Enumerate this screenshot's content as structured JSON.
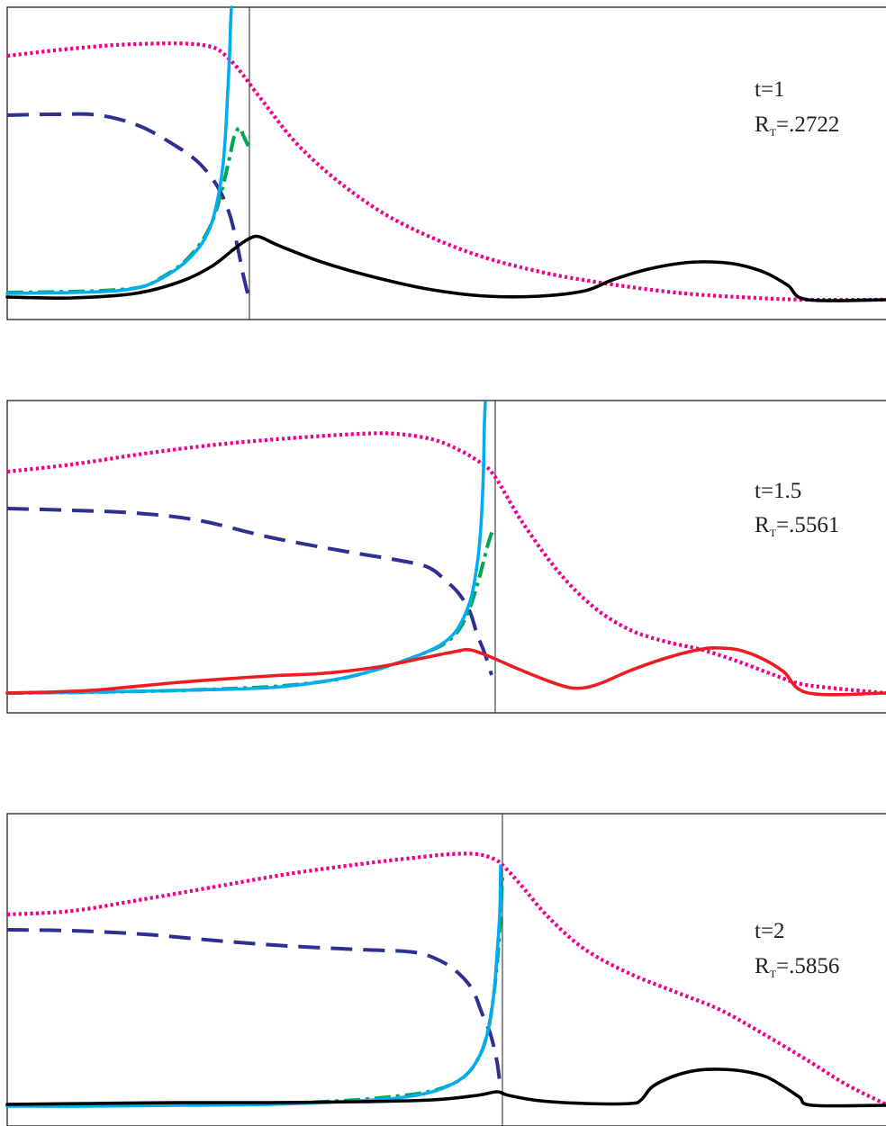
{
  "chart_data": [
    {
      "type": "line",
      "annotation": {
        "time_label": "t=1",
        "radius_main": "R",
        "radius_sub": "T",
        "radius_value": "=.2722"
      },
      "interface_x": 277,
      "series": [
        {
          "color": "#ec008c",
          "dash": "dotted",
          "points": [
            [
              8,
              62
            ],
            [
              80,
              54
            ],
            [
              150,
              49
            ],
            [
              225,
              50
            ],
            [
              255,
              66
            ],
            [
              290,
              110
            ],
            [
              330,
              160
            ],
            [
              380,
              205
            ],
            [
              440,
              245
            ],
            [
              520,
              280
            ],
            [
              600,
              302
            ],
            [
              680,
              316
            ],
            [
              760,
              326
            ],
            [
              840,
              331
            ],
            [
              900,
              333
            ],
            [
              984,
              333
            ]
          ]
        },
        {
          "color": "#2e3192",
          "dash": "dashed",
          "points": [
            [
              8,
              128
            ],
            [
              60,
              127
            ],
            [
              110,
              128
            ],
            [
              155,
              140
            ],
            [
              195,
              162
            ],
            [
              222,
              182
            ],
            [
              242,
              208
            ],
            [
              255,
              238
            ],
            [
              264,
              275
            ],
            [
              270,
              305
            ],
            [
              276,
              330
            ]
          ]
        },
        {
          "color": "#00a651",
          "dash": "dashdot",
          "points": [
            [
              8,
              325
            ],
            [
              80,
              324
            ],
            [
              130,
              322
            ],
            [
              160,
              318
            ],
            [
              180,
              308
            ],
            [
              200,
              295
            ],
            [
              215,
              280
            ],
            [
              228,
              262
            ],
            [
              238,
              240
            ],
            [
              248,
              205
            ],
            [
              255,
              175
            ],
            [
              260,
              152
            ],
            [
              266,
              142
            ],
            [
              270,
              150
            ],
            [
              277,
              165
            ]
          ]
        },
        {
          "color": "#00aeef",
          "dash": "solid",
          "points": [
            [
              8,
              326
            ],
            [
              80,
              325
            ],
            [
              130,
              323
            ],
            [
              160,
              318
            ],
            [
              180,
              309
            ],
            [
              200,
              296
            ],
            [
              215,
              282
            ],
            [
              227,
              266
            ],
            [
              236,
              245
            ],
            [
              243,
              215
            ],
            [
              248,
              180
            ],
            [
              251,
              140
            ],
            [
              253,
              100
            ],
            [
              255,
              60
            ],
            [
              256,
              30
            ],
            [
              257,
              8
            ]
          ]
        },
        {
          "color": "#000000",
          "dash": "solid",
          "points": [
            [
              8,
              330
            ],
            [
              80,
              331
            ],
            [
              150,
              326
            ],
            [
              200,
              313
            ],
            [
              235,
              296
            ],
            [
              262,
              275
            ],
            [
              277,
              265
            ],
            [
              288,
              263
            ],
            [
              310,
              273
            ],
            [
              360,
              292
            ],
            [
              420,
              309
            ],
            [
              480,
              322
            ],
            [
              540,
              329
            ],
            [
              600,
              329
            ],
            [
              650,
              323
            ],
            [
              680,
              311
            ],
            [
              720,
              299
            ],
            [
              760,
              292
            ],
            [
              790,
              291
            ],
            [
              820,
              294
            ],
            [
              850,
              303
            ],
            [
              875,
              317
            ],
            [
              897,
              333
            ],
            [
              984,
              333
            ]
          ]
        }
      ]
    },
    {
      "type": "line",
      "annotation": {
        "time_label": "t=1.5",
        "radius_main": "R",
        "radius_sub": "T",
        "radius_value": "=.5561"
      },
      "interface_x": 550,
      "series": [
        {
          "color": "#ec008c",
          "dash": "dotted",
          "points": [
            [
              8,
              524
            ],
            [
              80,
              516
            ],
            [
              160,
              504
            ],
            [
              240,
              494
            ],
            [
              320,
              487
            ],
            [
              400,
              482
            ],
            [
              440,
              482
            ],
            [
              480,
              488
            ],
            [
              510,
              500
            ],
            [
              535,
              515
            ],
            [
              550,
              530
            ],
            [
              580,
              580
            ],
            [
              620,
              635
            ],
            [
              660,
              675
            ],
            [
              700,
              700
            ],
            [
              740,
              713
            ],
            [
              780,
              722
            ],
            [
              820,
              735
            ],
            [
              860,
              750
            ],
            [
              890,
              760
            ],
            [
              930,
              765
            ],
            [
              984,
              770
            ]
          ]
        },
        {
          "color": "#2e3192",
          "dash": "dashed",
          "points": [
            [
              8,
              565
            ],
            [
              80,
              567
            ],
            [
              150,
              570
            ],
            [
              220,
              578
            ],
            [
              300,
              597
            ],
            [
              380,
              612
            ],
            [
              440,
              622
            ],
            [
              475,
              630
            ],
            [
              495,
              645
            ],
            [
              510,
              660
            ],
            [
              522,
              680
            ],
            [
              530,
              705
            ],
            [
              538,
              725
            ],
            [
              546,
              750
            ]
          ]
        },
        {
          "color": "#00a651",
          "dash": "dashdot",
          "points": [
            [
              8,
              770
            ],
            [
              100,
              769
            ],
            [
              200,
              767
            ],
            [
              300,
              763
            ],
            [
              360,
              757
            ],
            [
              400,
              749
            ],
            [
              440,
              737
            ],
            [
              470,
              726
            ],
            [
              492,
              716
            ],
            [
              508,
              702
            ],
            [
              520,
              680
            ],
            [
              530,
              650
            ],
            [
              538,
              620
            ],
            [
              544,
              598
            ],
            [
              548,
              588
            ]
          ]
        },
        {
          "color": "#00aeef",
          "dash": "solid",
          "points": [
            [
              8,
              770
            ],
            [
              100,
              769
            ],
            [
              200,
              767
            ],
            [
              300,
              764
            ],
            [
              360,
              757
            ],
            [
              400,
              749
            ],
            [
              440,
              737
            ],
            [
              470,
              726
            ],
            [
              490,
              716
            ],
            [
              505,
              703
            ],
            [
              515,
              686
            ],
            [
              523,
              665
            ],
            [
              528,
              640
            ],
            [
              532,
              610
            ],
            [
              535,
              570
            ],
            [
              537,
              520
            ],
            [
              538,
              470
            ],
            [
              539,
              447
            ]
          ]
        },
        {
          "color": "#ed1c24",
          "dash": "solid",
          "points": [
            [
              8,
              770
            ],
            [
              100,
              767
            ],
            [
              200,
              758
            ],
            [
              300,
              751
            ],
            [
              360,
              748
            ],
            [
              420,
              741
            ],
            [
              470,
              731
            ],
            [
              505,
              724
            ],
            [
              522,
              722
            ],
            [
              545,
              730
            ],
            [
              575,
              743
            ],
            [
              610,
              757
            ],
            [
              633,
              764
            ],
            [
              650,
              764
            ],
            [
              670,
              758
            ],
            [
              700,
              745
            ],
            [
              740,
              731
            ],
            [
              780,
              721
            ],
            [
              800,
              720
            ],
            [
              820,
              722
            ],
            [
              845,
              731
            ],
            [
              870,
              746
            ],
            [
              898,
              770
            ],
            [
              984,
              770
            ]
          ]
        }
      ]
    },
    {
      "type": "line",
      "annotation": {
        "time_label": "t=2",
        "radius_main": "R",
        "radius_sub": "T",
        "radius_value": "=.5856"
      },
      "interface_x": 558,
      "series": [
        {
          "color": "#ec008c",
          "dash": "dotted",
          "points": [
            [
              8,
              1016
            ],
            [
              80,
              1012
            ],
            [
              160,
              999
            ],
            [
              240,
              985
            ],
            [
              320,
              971
            ],
            [
              400,
              960
            ],
            [
              460,
              953
            ],
            [
              500,
              949
            ],
            [
              530,
              949
            ],
            [
              550,
              955
            ],
            [
              562,
              965
            ],
            [
              580,
              985
            ],
            [
              610,
              1020
            ],
            [
              650,
              1055
            ],
            [
              700,
              1082
            ],
            [
              750,
              1102
            ],
            [
              800,
              1122
            ],
            [
              850,
              1150
            ],
            [
              900,
              1180
            ],
            [
              940,
              1205
            ],
            [
              984,
              1227
            ]
          ]
        },
        {
          "color": "#2e3192",
          "dash": "dashed",
          "points": [
            [
              8,
              1033
            ],
            [
              80,
              1034
            ],
            [
              160,
              1038
            ],
            [
              240,
              1045
            ],
            [
              320,
              1051
            ],
            [
              400,
              1055
            ],
            [
              460,
              1058
            ],
            [
              490,
              1068
            ],
            [
              510,
              1082
            ],
            [
              525,
              1100
            ],
            [
              535,
              1125
            ],
            [
              545,
              1150
            ],
            [
              552,
              1180
            ],
            [
              556,
              1210
            ]
          ]
        },
        {
          "color": "#00a651",
          "dash": "dashdot",
          "points": [
            [
              8,
              1228
            ],
            [
              100,
              1228
            ],
            [
              200,
              1227
            ],
            [
              300,
              1226
            ],
            [
              380,
              1223
            ],
            [
              440,
              1218
            ],
            [
              480,
              1212
            ],
            [
              505,
              1203
            ],
            [
              520,
              1192
            ],
            [
              530,
              1178
            ],
            [
              538,
              1160
            ],
            [
              544,
              1135
            ],
            [
              549,
              1100
            ],
            [
              553,
              1060
            ],
            [
              556,
              1015
            ],
            [
              558,
              975
            ]
          ]
        },
        {
          "color": "#00aeef",
          "dash": "solid",
          "points": [
            [
              8,
              1229
            ],
            [
              100,
              1229
            ],
            [
              200,
              1228
            ],
            [
              300,
              1227
            ],
            [
              380,
              1224
            ],
            [
              440,
              1220
            ],
            [
              480,
              1213
            ],
            [
              505,
              1203
            ],
            [
              520,
              1192
            ],
            [
              530,
              1178
            ],
            [
              538,
              1160
            ],
            [
              544,
              1135
            ],
            [
              549,
              1100
            ],
            [
              552,
              1060
            ],
            [
              555,
              1015
            ],
            [
              556,
              962
            ]
          ]
        },
        {
          "color": "#000000",
          "dash": "solid",
          "points": [
            [
              8,
              1227
            ],
            [
              100,
              1226
            ],
            [
              200,
              1225
            ],
            [
              300,
              1225
            ],
            [
              400,
              1224
            ],
            [
              480,
              1222
            ],
            [
              530,
              1217
            ],
            [
              552,
              1213
            ],
            [
              565,
              1217
            ],
            [
              600,
              1223
            ],
            [
              650,
              1226
            ],
            [
              700,
              1226
            ],
            [
              712,
              1222
            ],
            [
              725,
              1207
            ],
            [
              750,
              1195
            ],
            [
              775,
              1189
            ],
            [
              800,
              1188
            ],
            [
              825,
              1190
            ],
            [
              850,
              1196
            ],
            [
              870,
              1207
            ],
            [
              888,
              1219
            ],
            [
              902,
              1228
            ],
            [
              984,
              1228
            ]
          ]
        }
      ]
    }
  ]
}
